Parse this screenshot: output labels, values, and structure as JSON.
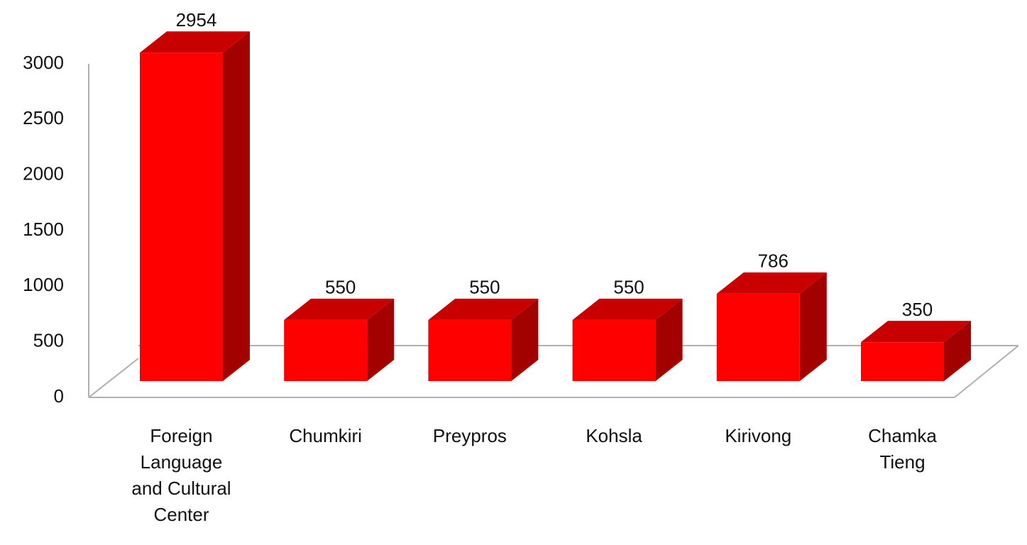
{
  "chart_data": {
    "type": "bar3d",
    "categories": [
      "Foreign\nLanguage\nand Cultural\nCenter",
      "Chumkiri",
      "Preypros",
      "Kohsla",
      "Kirivong",
      "Chamka\nTieng"
    ],
    "values": [
      2954,
      550,
      550,
      550,
      786,
      350
    ],
    "color": "#ff0000",
    "ylim": [
      0,
      3000
    ],
    "yticks": [
      0,
      500,
      1000,
      1500,
      2000,
      2500,
      3000
    ]
  }
}
